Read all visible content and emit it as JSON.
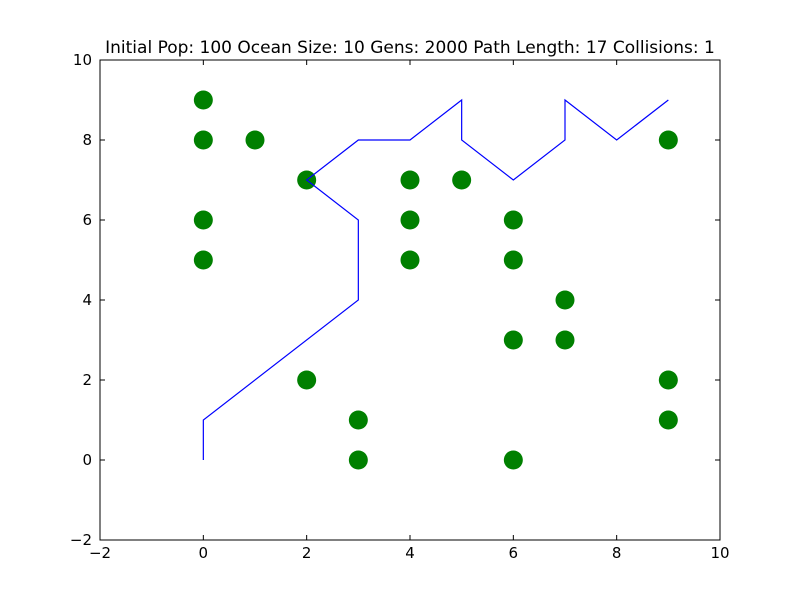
{
  "chart_data": {
    "type": "scatter",
    "title": "Initial Pop: 100 Ocean Size: 10 Gens: 2000 Path Length: 17 Collisions: 1",
    "xlabel": "",
    "ylabel": "",
    "xlim": [
      -2,
      10
    ],
    "ylim": [
      -2,
      10
    ],
    "xticks": [
      -2,
      0,
      2,
      4,
      6,
      8,
      10
    ],
    "yticks": [
      -2,
      0,
      2,
      4,
      6,
      8,
      10
    ],
    "xtick_labels": [
      "−2",
      "0",
      "2",
      "4",
      "6",
      "8",
      "10"
    ],
    "ytick_labels": [
      "−2",
      "0",
      "2",
      "4",
      "6",
      "8",
      "10"
    ],
    "grid": false,
    "series": [
      {
        "kind": "scatter",
        "color": "#008000",
        "points": [
          [
            0,
            9
          ],
          [
            0,
            8
          ],
          [
            1,
            8
          ],
          [
            0,
            6
          ],
          [
            0,
            5
          ],
          [
            2,
            7
          ],
          [
            2,
            2
          ],
          [
            3,
            1
          ],
          [
            3,
            0
          ],
          [
            4,
            7
          ],
          [
            4,
            6
          ],
          [
            4,
            5
          ],
          [
            5,
            7
          ],
          [
            6,
            6
          ],
          [
            6,
            5
          ],
          [
            6,
            3
          ],
          [
            6,
            0
          ],
          [
            7,
            4
          ],
          [
            7,
            3
          ],
          [
            9,
            8
          ],
          [
            9,
            2
          ],
          [
            9,
            1
          ]
        ]
      },
      {
        "kind": "line",
        "color": "#0000ff",
        "points": [
          [
            0,
            0
          ],
          [
            0,
            1
          ],
          [
            3,
            4
          ],
          [
            3,
            6
          ],
          [
            2,
            7
          ],
          [
            3,
            8
          ],
          [
            4,
            8
          ],
          [
            5,
            9
          ],
          [
            5,
            8
          ],
          [
            6,
            7
          ],
          [
            7,
            8
          ],
          [
            7,
            9
          ],
          [
            8,
            8
          ],
          [
            9,
            9
          ]
        ]
      }
    ]
  }
}
